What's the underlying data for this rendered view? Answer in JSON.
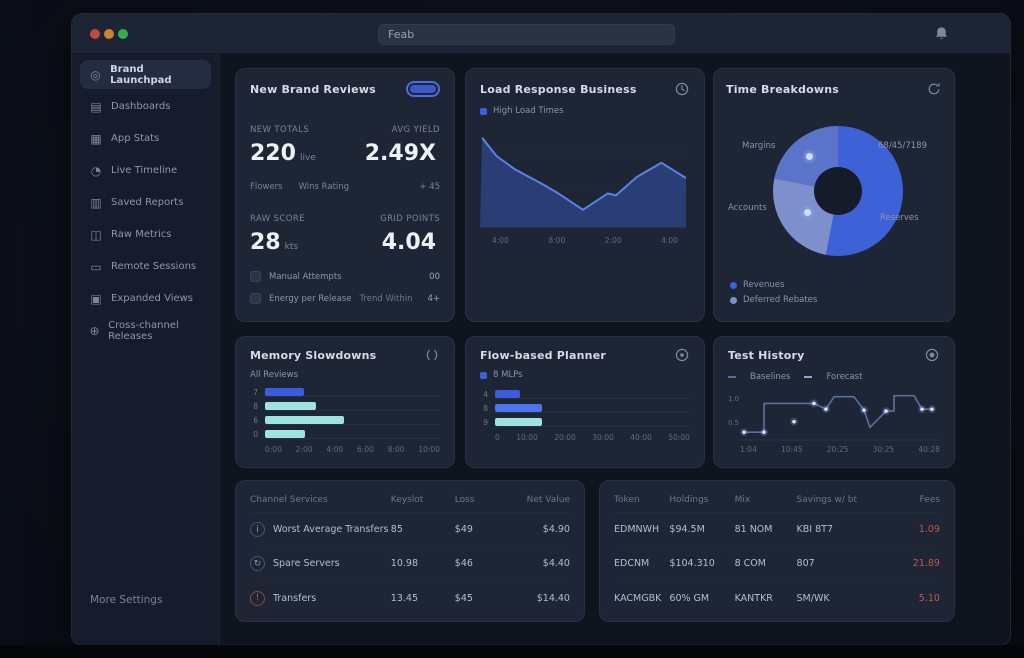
{
  "chrome": {
    "search_value": "Feab",
    "traffic_lights": {
      "close": "#c14b3e",
      "minimize": "#c9832e",
      "zoom": "#2fae4f"
    }
  },
  "sidebar": {
    "items": [
      {
        "name": "brand-launchpad",
        "label": "Brand Launchpad",
        "glyph": "◎",
        "active": true
      },
      {
        "name": "dashboards",
        "label": "Dashboards",
        "glyph": "▤"
      },
      {
        "name": "app-stats",
        "label": "App Stats",
        "glyph": "▦"
      },
      {
        "name": "live-timeline",
        "label": "Live Timeline",
        "glyph": "◔"
      },
      {
        "name": "saved-reports",
        "label": "Saved Reports",
        "glyph": "▥"
      },
      {
        "name": "raw-metrics",
        "label": "Raw Metrics",
        "glyph": "◫"
      },
      {
        "name": "remote-sessions",
        "label": "Remote Sessions",
        "glyph": "▭"
      },
      {
        "name": "expanded-views",
        "label": "Expanded Views",
        "glyph": "▣"
      },
      {
        "name": "cross-channel-releases",
        "label": "Cross-channel Releases",
        "glyph": "⊕"
      }
    ],
    "footer": "More Settings"
  },
  "card_reviews": {
    "title": "New Brand Reviews",
    "stats": [
      {
        "label": "NEW TOTALS",
        "value": "220",
        "suffix": "live"
      },
      {
        "label": "AVG YIELD",
        "value": "2.49X",
        "suffix": ""
      },
      {
        "label": "RAW SCORE",
        "value": "28",
        "suffix": "kts"
      },
      {
        "label": "GRID POINTS",
        "value": "4.04",
        "suffix": ""
      }
    ],
    "mini": [
      "Flowers",
      "Wins Rating",
      "+ 45"
    ],
    "rows": [
      {
        "label": "Manual Attempts",
        "label2": "",
        "value": "00"
      },
      {
        "label": "Energy per Release",
        "label2": "Trend Within",
        "value": "4+"
      }
    ]
  },
  "card_load": {
    "title": "Load Response Business",
    "legend": "High Load Times"
  },
  "card_breakdown": {
    "title": "Time Breakdowns",
    "callouts": {
      "tl": "Margins",
      "tr": "68/45/7189",
      "ml": "Accounts",
      "mr": "Reserves"
    },
    "legend": [
      "Revenues",
      "Deferred Rebates"
    ]
  },
  "card_memory": {
    "title": "Memory Slowdowns",
    "sub": "All Reviews"
  },
  "card_planner": {
    "title": "Flow-based Planner",
    "legend": "8 MLPs"
  },
  "card_tests": {
    "title": "Test History",
    "legend": [
      "Baselines",
      "Forecast"
    ],
    "y_labels": [
      "1.0",
      "0.5"
    ]
  },
  "table_services": {
    "headers": [
      "Channel Services",
      "Keyslot",
      "Loss",
      "Net Value"
    ],
    "rows": [
      {
        "glyph": "i",
        "name": "Worst Average Transfers",
        "c1": "85",
        "c2": "$49",
        "c3": "$4.90"
      },
      {
        "glyph": "↻",
        "name": "Spare Servers",
        "c1": "10.98",
        "c2": "$46",
        "c3": "$4.40"
      },
      {
        "glyph": "!",
        "name": "Transfers",
        "c1": "13.45",
        "c2": "$45",
        "c3": "$14.40"
      }
    ]
  },
  "table_tokens": {
    "headers": [
      "Token",
      "Holdings",
      "Mix",
      "Savings w/ bt",
      "Fees"
    ],
    "rows": [
      {
        "c1": "EDMNWH",
        "c2": "$94.5M",
        "c3": "81 NOM",
        "c4": "KBI 8T7",
        "c5": "1.09"
      },
      {
        "c1": "EDCNM",
        "c2": "$104.310",
        "c3": "8 COM",
        "c4": "807",
        "c5": "21.89"
      },
      {
        "c1": "KACMGBK",
        "c2": "60% GM",
        "c3": "KANTKR",
        "c4": "SM/WK",
        "c5": "5.10"
      }
    ]
  },
  "colors": {
    "accent": "#3d62d8",
    "line": "#5b82e8",
    "teal": "#9fe3de",
    "accent_bright": "#4f74f0",
    "negative": "#c2574b"
  },
  "chart_data": [
    {
      "id": "load_area",
      "type": "area",
      "title": "Load Response Business",
      "legend": [
        "High Load Times"
      ],
      "x_ticks": [
        "4:00",
        "8:00",
        "2:00",
        "4:00"
      ],
      "points": [
        [
          1,
          6
        ],
        [
          8,
          25
        ],
        [
          17,
          39
        ],
        [
          30,
          54
        ],
        [
          38,
          64
        ],
        [
          50,
          81
        ],
        [
          62,
          64
        ],
        [
          66,
          66
        ],
        [
          76,
          47
        ],
        [
          88,
          32
        ],
        [
          100,
          48
        ]
      ],
      "line_color": "#5b82e8",
      "fill_color": "rgba(61,98,216,0.4)"
    },
    {
      "id": "breakdown_donut",
      "type": "pie",
      "title": "Time Breakdowns",
      "labels": [
        "Revenues",
        "Deferred Rebates",
        "Margins"
      ],
      "values": [
        53,
        25,
        22
      ],
      "colors": [
        "#3d62d8",
        "#7e90cc",
        "#5974c8"
      ]
    },
    {
      "id": "memory_bars",
      "type": "bar",
      "orientation": "horizontal",
      "title": "Memory Slowdowns",
      "categories": [
        "7",
        "8",
        "6",
        "0"
      ],
      "values": [
        22,
        29,
        45,
        23
      ],
      "colors": [
        "#3a5de0",
        "#9fe3de",
        "#9fe3de",
        "#9fe3de"
      ],
      "x_ticks": [
        "0:00",
        "2:00",
        "4:00",
        "6:00",
        "8:00",
        "10:00"
      ]
    },
    {
      "id": "planner_bars",
      "type": "bar",
      "orientation": "horizontal",
      "title": "Flow-based Planner",
      "categories": [
        "4",
        "8",
        "9"
      ],
      "values": [
        13,
        24,
        24
      ],
      "colors": [
        "#3a5de0",
        "#4f74f0",
        "#9fe3de"
      ],
      "x_ticks": [
        "0",
        "10:00",
        "20:00",
        "30:00",
        "40:00",
        "50:00"
      ]
    },
    {
      "id": "tests_step",
      "type": "line",
      "style": "step",
      "title": "Test History",
      "y_ticks": [
        "1.0",
        "0.5"
      ],
      "x_ticks": [
        "1:04",
        "10:45",
        "20:25",
        "30:25",
        "40:28"
      ],
      "path": [
        [
          3,
          90
        ],
        [
          13,
          90
        ],
        [
          13,
          30
        ],
        [
          38,
          30
        ],
        [
          44,
          42
        ],
        [
          48,
          16
        ],
        [
          58,
          16
        ],
        [
          63,
          44
        ],
        [
          66,
          80
        ],
        [
          74,
          46
        ],
        [
          78,
          46
        ],
        [
          78,
          14
        ],
        [
          88,
          14
        ],
        [
          92,
          42
        ],
        [
          97,
          42
        ]
      ],
      "dots": [
        [
          3,
          90
        ],
        [
          13,
          90
        ],
        [
          28,
          68
        ],
        [
          38,
          30
        ],
        [
          44,
          42
        ],
        [
          63,
          44
        ],
        [
          74,
          46
        ],
        [
          92,
          42
        ],
        [
          97,
          42
        ]
      ],
      "line_color": "#5a719f"
    }
  ]
}
